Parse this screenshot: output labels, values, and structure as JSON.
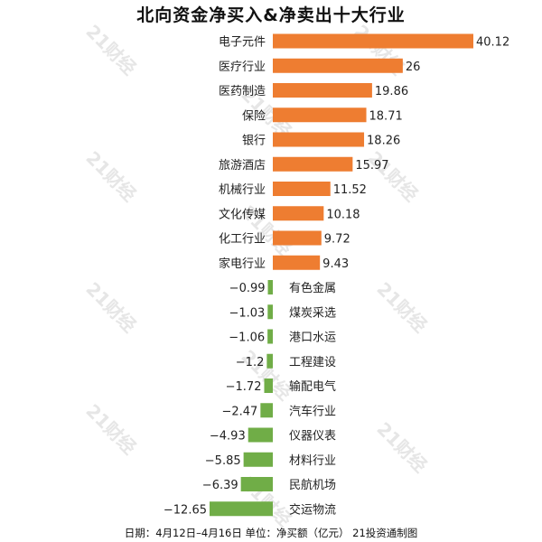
{
  "chart_data": {
    "type": "bar",
    "orientation": "horizontal",
    "title": "北向资金净买入&净卖出十大行业",
    "footer": "日期：4月12日–4月16日 单位：净买额（亿元） 21投资通制图",
    "watermark": "21财经",
    "categories": [
      "电子元件",
      "医疗行业",
      "医药制造",
      "保险",
      "银行",
      "旅游酒店",
      "机械行业",
      "文化传媒",
      "化工行业",
      "家电行业",
      "有色金属",
      "煤炭采选",
      "港口水运",
      "工程建设",
      "输配电气",
      "汽车行业",
      "仪器仪表",
      "材料行业",
      "民航机场",
      "交运物流"
    ],
    "values": [
      40.12,
      26,
      19.86,
      18.71,
      18.26,
      15.97,
      11.52,
      10.18,
      9.72,
      9.43,
      -0.99,
      -1.03,
      -1.06,
      -1.2,
      -1.72,
      -2.47,
      -4.93,
      -5.85,
      -6.39,
      -12.65
    ],
    "value_labels": [
      "40.12",
      "26",
      "19.86",
      "18.71",
      "18.26",
      "15.97",
      "11.52",
      "10.18",
      "9.72",
      "9.43",
      "−0.99",
      "−1.03",
      "−1.06",
      "−1.2",
      "−1.72",
      "−2.47",
      "−4.93",
      "−5.85",
      "−6.39",
      "−12.65"
    ],
    "colors": {
      "positive": "#EE7D31",
      "negative": "#70AD47",
      "text": "#222222",
      "watermark": "#C8C8C8"
    },
    "grid": false,
    "axis_visible": false
  }
}
